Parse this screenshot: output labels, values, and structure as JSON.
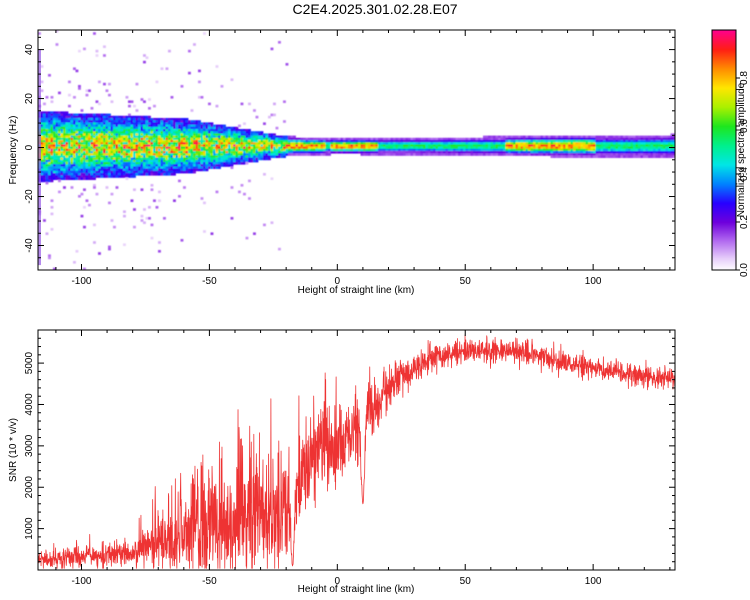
{
  "figure_title": "C2E4.2025.301.02.28.E07",
  "chart_data": [
    {
      "type": "heatmap",
      "title": "C2E4.2025.301.02.28.E07",
      "xlabel": "Height of straight line (km)",
      "ylabel": "Frequency (Hz)",
      "xlim": [
        -117,
        132
      ],
      "ylim": [
        -50,
        48
      ],
      "xticks": [
        -100,
        -50,
        0,
        50,
        100
      ],
      "yticks": [
        -40,
        -20,
        0,
        20,
        40
      ],
      "colorbar": {
        "label": "Normalized spectral amplitude",
        "range": [
          0,
          1
        ],
        "ticks": [
          0.0,
          0.2,
          0.4,
          0.6,
          0.8
        ],
        "tick_labels": [
          "0.0",
          "0.2",
          "0.4",
          "0.6",
          "0.8"
        ]
      },
      "band_center_hz": 1,
      "band_halfwidth_hz": [
        {
          "x": -117,
          "hw": 9
        },
        {
          "x": -60,
          "hw": 7
        },
        {
          "x": -20,
          "hw": 2.5
        },
        {
          "x": 0,
          "hw": 2
        },
        {
          "x": 132,
          "hw": 3
        }
      ],
      "peak_segments_km": [
        [
          -25,
          -5
        ],
        [
          -3,
          15
        ],
        [
          65,
          100
        ]
      ]
    },
    {
      "type": "line",
      "xlabel": "Height of straight line (km)",
      "ylabel": "SNR (10 * v/v)",
      "xlim": [
        -117,
        132
      ],
      "ylim": [
        0,
        5800
      ],
      "xticks": [
        -100,
        -50,
        0,
        50,
        100
      ],
      "yticks": [
        1000,
        2000,
        3000,
        4000,
        5000
      ],
      "color": "#ee3333",
      "trend": [
        {
          "x": -117,
          "y": 250
        },
        {
          "x": -100,
          "y": 300
        },
        {
          "x": -80,
          "y": 400
        },
        {
          "x": -70,
          "y": 700
        },
        {
          "x": -60,
          "y": 900
        },
        {
          "x": -45,
          "y": 1100
        },
        {
          "x": -30,
          "y": 1400
        },
        {
          "x": -18,
          "y": 1600
        },
        {
          "x": -15,
          "y": 2300
        },
        {
          "x": -5,
          "y": 3000
        },
        {
          "x": 5,
          "y": 3300
        },
        {
          "x": 10,
          "y": 3700
        },
        {
          "x": 15,
          "y": 4000
        },
        {
          "x": 25,
          "y": 4700
        },
        {
          "x": 35,
          "y": 5100
        },
        {
          "x": 50,
          "y": 5300
        },
        {
          "x": 70,
          "y": 5300
        },
        {
          "x": 90,
          "y": 5000
        },
        {
          "x": 110,
          "y": 4800
        },
        {
          "x": 132,
          "y": 4600
        }
      ],
      "noise_amplitude": [
        {
          "x": -117,
          "a": 250
        },
        {
          "x": -80,
          "a": 350
        },
        {
          "x": -60,
          "a": 1200
        },
        {
          "x": -30,
          "a": 1700
        },
        {
          "x": -17,
          "a": 1500
        },
        {
          "x": 0,
          "a": 1100
        },
        {
          "x": 20,
          "a": 600
        },
        {
          "x": 40,
          "a": 350
        },
        {
          "x": 132,
          "a": 300
        }
      ],
      "dips": [
        {
          "x": -17.5,
          "y": 100
        },
        {
          "x": 10,
          "y": 1600
        }
      ]
    }
  ]
}
